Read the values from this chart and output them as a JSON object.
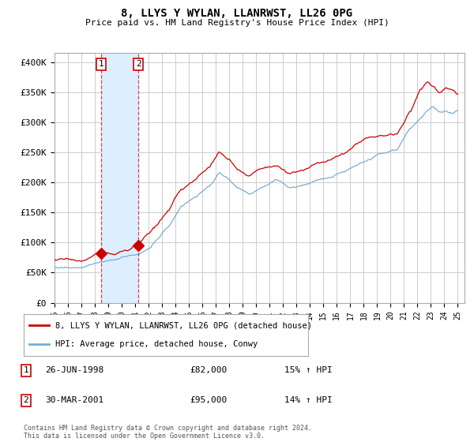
{
  "title": "8, LLYS Y WYLAN, LLANRWST, LL26 0PG",
  "subtitle": "Price paid vs. HM Land Registry's House Price Index (HPI)",
  "yticks": [
    0,
    50000,
    100000,
    150000,
    200000,
    250000,
    300000,
    350000,
    400000
  ],
  "ytick_labels": [
    "£0",
    "£50K",
    "£100K",
    "£150K",
    "£200K",
    "£250K",
    "£300K",
    "£350K",
    "£400K"
  ],
  "ylim": [
    0,
    415000
  ],
  "xlim_start": 1995.0,
  "xlim_end": 2025.5,
  "sale1_date": 1998.48,
  "sale1_price": 82000,
  "sale1_label": "26-JUN-1998",
  "sale1_amount": "£82,000",
  "sale1_hpi": "15% ↑ HPI",
  "sale2_date": 2001.24,
  "sale2_price": 95000,
  "sale2_label": "30-MAR-2001",
  "sale2_amount": "£95,000",
  "sale2_hpi": "14% ↑ HPI",
  "line1_color": "#cc0000",
  "line2_color": "#7aadd0",
  "shade_color": "#ddeeff",
  "grid_color": "#cccccc",
  "background_color": "#ffffff",
  "legend1_label": "8, LLYS Y WYLAN, LLANRWST, LL26 0PG (detached house)",
  "legend2_label": "HPI: Average price, detached house, Conwy",
  "footer": "Contains HM Land Registry data © Crown copyright and database right 2024.\nThis data is licensed under the Open Government Licence v3.0."
}
